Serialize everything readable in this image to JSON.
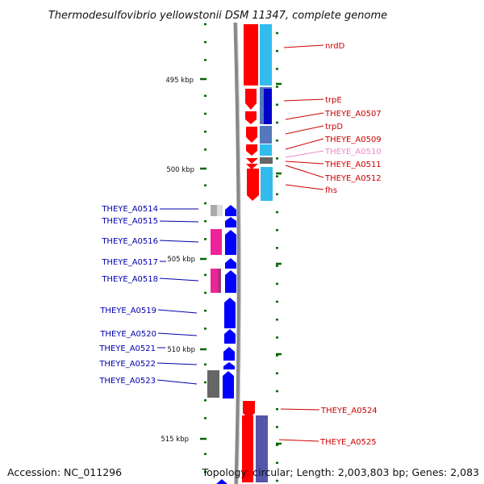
{
  "title": "Thermodesulfovibrio yellowstonii DSM 11347, complete genome",
  "footer": {
    "accession": "Accession: NC_011296",
    "topology": "Topology: circular; Length: 2,003,803 bp; Genes: 2,083"
  },
  "scale_labels": [
    "495 kbp",
    "500 kbp",
    "505 kbp",
    "510 kbp",
    "515 kbp"
  ],
  "colors": {
    "forward_label": "#cc0000",
    "reverse_label": "#0000aa",
    "faded_label": "#ee88cc",
    "cds_forward": "#ff0000",
    "cds_reverse": "#0000ff",
    "tick": "#006600",
    "backbone": "#888888"
  },
  "right_labels": [
    "nrdD",
    "trpE",
    "THEYE_A0507",
    "trpD",
    "THEYE_A0509",
    "THEYE_A0510",
    "THEYE_A0511",
    "THEYE_A0512",
    "fhs",
    "THEYE_A0524",
    "THEYE_A0525"
  ],
  "left_labels": [
    "THEYE_A0514",
    "THEYE_A0515",
    "THEYE_A0516",
    "THEYE_A0517",
    "THEYE_A0518",
    "THEYE_A0519",
    "THEYE_A0520",
    "THEYE_A0521",
    "THEYE_A0522",
    "THEYE_A0523"
  ]
}
